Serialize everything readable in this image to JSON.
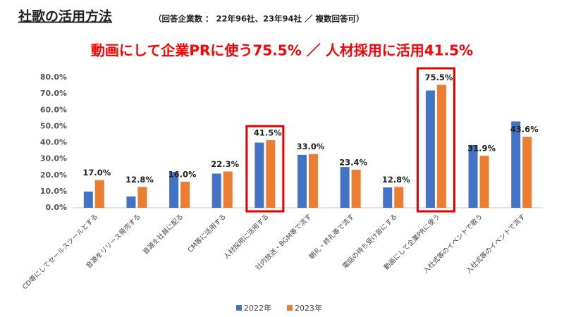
{
  "chart_data": {
    "type": "bar",
    "title": "社歌の活用方法",
    "subtitle": "（回答企業数 ： 22年96社、23年94社 ／ 複数回答可）",
    "headline": "動画にして企業PRに使う75.5% ／ 人材採用に活用41.5%",
    "categories": [
      "CD等にしてセールスツールとする",
      "音源をリリース発売する",
      "音源を社員に配る",
      "CM等に活用する",
      "人材採用に活用する",
      "社内放送・BGM等で流す",
      "朝礼・終礼等で流す",
      "電話の待ち受け音にする",
      "動画にして企業PRに使う",
      "入社式等のイベントで歌う",
      "入社式等のイベントで流す"
    ],
    "series": [
      {
        "name": "2022年",
        "color": "#4472c4",
        "values": [
          10.0,
          7.0,
          22.0,
          21.0,
          40.0,
          32.5,
          25.0,
          12.5,
          72.0,
          38.5,
          53.0
        ]
      },
      {
        "name": "2023年",
        "color": "#ed7d31",
        "values": [
          17.0,
          12.8,
          16.0,
          22.3,
          41.5,
          33.0,
          23.4,
          12.8,
          75.5,
          31.9,
          43.6
        ],
        "value_labels": [
          "17.0%",
          "12.8%",
          "16.0%",
          "22.3%",
          "41.5%",
          "33.0%",
          "23.4%",
          "12.8%",
          "75.5%",
          "31.9%",
          "43.6%"
        ]
      }
    ],
    "ylim": [
      0,
      80
    ],
    "yticks": [
      {
        "value": 0,
        "label": "0.0%"
      },
      {
        "value": 10,
        "label": "10.0%"
      },
      {
        "value": 20,
        "label": "20.0%"
      },
      {
        "value": 30,
        "label": "30.0%"
      },
      {
        "value": 40,
        "label": "40.0%"
      },
      {
        "value": 50,
        "label": "50.0%"
      },
      {
        "value": 60,
        "label": "60.0%"
      },
      {
        "value": 70,
        "label": "70.0%"
      },
      {
        "value": 80,
        "label": "80.0%"
      }
    ],
    "grid": false,
    "legend": "bottom"
  }
}
